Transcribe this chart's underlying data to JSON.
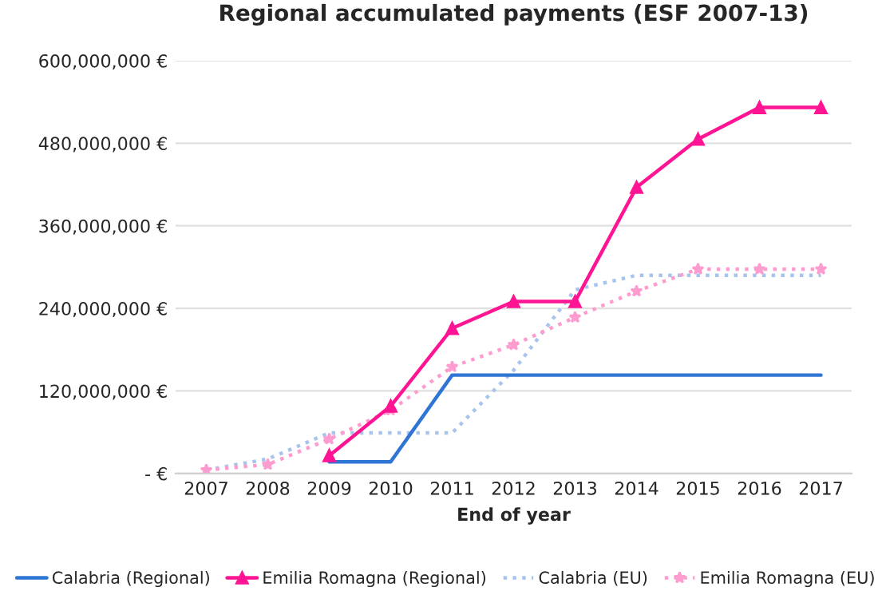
{
  "chart_data": {
    "type": "line",
    "title": "Regional accumulated payments (ESF 2007-13)",
    "xlabel": "End of year",
    "categories": [
      "2007",
      "2008",
      "2009",
      "2010",
      "2011",
      "2012",
      "2013",
      "2014",
      "2015",
      "2016",
      "2017"
    ],
    "series": [
      {
        "name": "Calabria (Regional)",
        "color": "#2e75d4",
        "marker": "none",
        "line_style": "solid",
        "values": [
          null,
          null,
          17000000,
          17000000,
          143000000,
          143000000,
          143000000,
          143000000,
          143000000,
          143000000,
          143000000
        ]
      },
      {
        "name": "Emilia Romagna (Regional)",
        "color": "#ff1493",
        "marker": "triangle",
        "line_style": "solid",
        "values": [
          null,
          null,
          26000000,
          98000000,
          211000000,
          250000000,
          250000000,
          416000000,
          486000000,
          532000000,
          532000000
        ]
      },
      {
        "name": "Calabria (EU)",
        "color": "#a6c4ee",
        "marker": "none",
        "line_style": "dotted",
        "values": [
          5000000,
          21000000,
          59000000,
          59000000,
          59000000,
          150000000,
          267000000,
          288000000,
          288000000,
          288000000,
          288000000
        ]
      },
      {
        "name": "Emilia Romagna (EU)",
        "color": "#ff9ccf",
        "marker": "star",
        "line_style": "dotted",
        "values": [
          5000000,
          13000000,
          50000000,
          92000000,
          155000000,
          187000000,
          227000000,
          265000000,
          297000000,
          297000000,
          297000000
        ]
      }
    ],
    "ylim": [
      0,
      600000000
    ],
    "yticks": [
      {
        "value": 0,
        "label": "- €"
      },
      {
        "value": 120000000,
        "label": "120,000,000 €"
      },
      {
        "value": 240000000,
        "label": "240,000,000 €"
      },
      {
        "value": 360000000,
        "label": "360,000,000 €"
      },
      {
        "value": 480000000,
        "label": "480,000,000 €"
      },
      {
        "value": 600000000,
        "label": "600,000,000 €"
      }
    ],
    "grid": "y",
    "legend": "bottom"
  }
}
